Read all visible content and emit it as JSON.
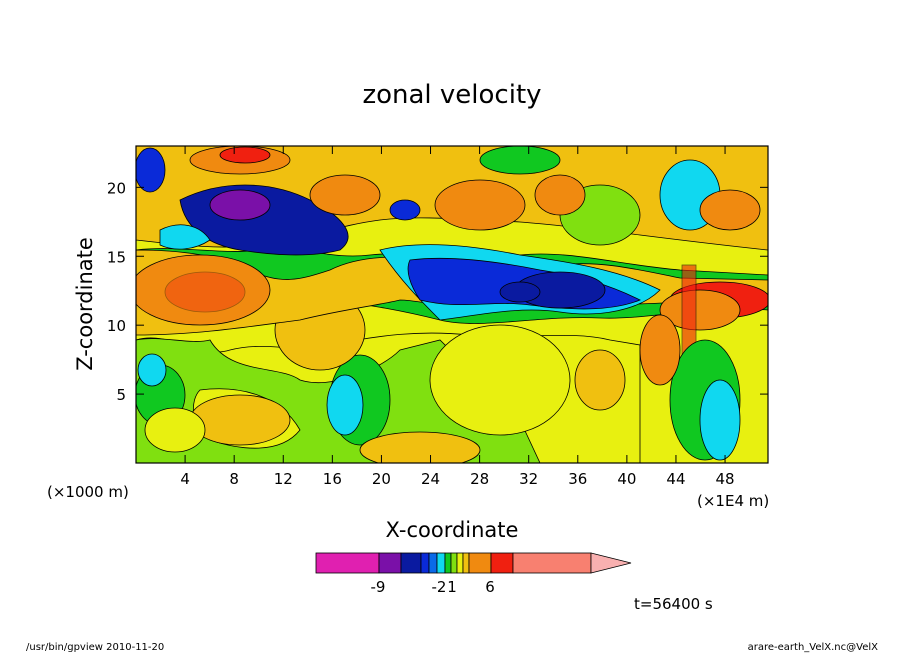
{
  "chart_data": {
    "type": "heatmap",
    "title": "zonal velocity",
    "xlabel": "X-coordinate",
    "ylabel": "Z-coordinate",
    "x_unit_left": "(×1000 m)",
    "x_unit_right": "(×1E4 m)",
    "xlim": [
      0,
      51.5
    ],
    "ylim": [
      0,
      23
    ],
    "x_ticks": [
      4,
      8,
      12,
      16,
      20,
      24,
      28,
      32,
      36,
      40,
      44,
      48
    ],
    "y_ticks": [
      5,
      10,
      15,
      20
    ],
    "colorbar": {
      "tick_labels": [
        "-9",
        "-2",
        "1",
        "6"
      ],
      "colors": [
        "#e020b0",
        "#7a10a8",
        "#0a1aa0",
        "#0a2ad8",
        "#0a6ae8",
        "#10d8f0",
        "#10c820",
        "#80e010",
        "#e8f010",
        "#f0c010",
        "#f08a10",
        "#f02010",
        "#f88070",
        "#f8b0b0"
      ]
    },
    "time_label": "t=56400 s",
    "footer_left": "/usr/bin/gpview  2010-11-20",
    "footer_right": "arare-earth_VelX.nc@VelX"
  }
}
